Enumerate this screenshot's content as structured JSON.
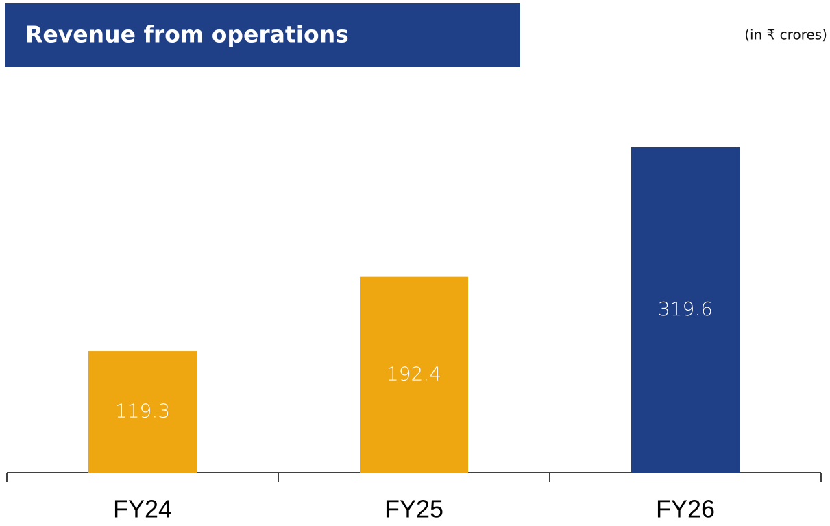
{
  "chart_data": {
    "type": "bar",
    "title": "Revenue from operations",
    "subtitle": "(in ₹ crores)",
    "categories": [
      "FY24",
      "FY25",
      "FY26"
    ],
    "values": [
      119.3,
      192.4,
      319.6
    ],
    "colors": [
      "#eea711",
      "#eea711",
      "#1f3f87"
    ]
  }
}
